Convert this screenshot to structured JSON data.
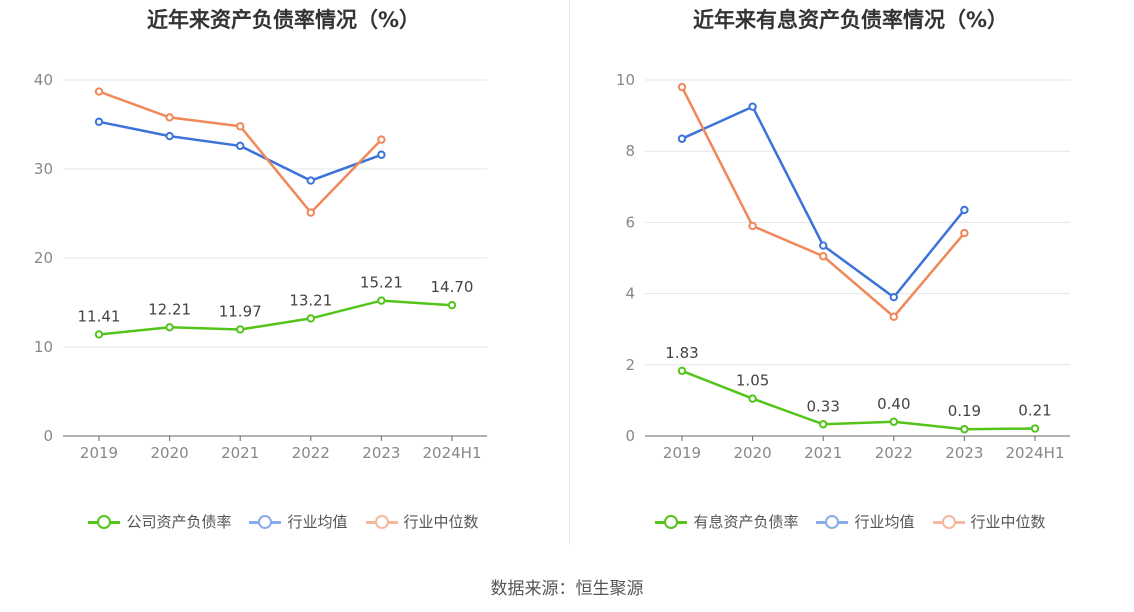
{
  "source_text": "数据来源：恒生聚源",
  "chart_data": [
    {
      "type": "line",
      "title": "近年来资产负债率情况（%）",
      "categories": [
        "2019",
        "2020",
        "2021",
        "2022",
        "2023",
        "2024H1"
      ],
      "ylim": [
        0,
        40
      ],
      "yticks": [
        0,
        10,
        20,
        30,
        40
      ],
      "grid": true,
      "legend_position": "bottom",
      "series": [
        {
          "name": "公司资产负债率",
          "color": "#52c41a",
          "values": [
            11.41,
            12.21,
            11.97,
            13.21,
            15.21,
            14.7
          ],
          "labels": [
            "11.41",
            "12.21",
            "11.97",
            "13.21",
            "15.21",
            "14.70"
          ]
        },
        {
          "name": "行业均值",
          "color": "#3b73d9",
          "values": [
            35.3,
            33.7,
            32.6,
            28.7,
            31.6,
            null
          ]
        },
        {
          "name": "行业中位数",
          "color": "#f0885a",
          "values": [
            38.7,
            35.8,
            34.8,
            25.1,
            33.3,
            null
          ]
        }
      ]
    },
    {
      "type": "line",
      "title": "近年来有息资产负债率情况（%）",
      "categories": [
        "2019",
        "2020",
        "2021",
        "2022",
        "2023",
        "2024H1"
      ],
      "ylim": [
        0,
        10
      ],
      "yticks": [
        0,
        2,
        4,
        6,
        8,
        10
      ],
      "grid": true,
      "legend_position": "bottom",
      "series": [
        {
          "name": "有息资产负债率",
          "color": "#52c41a",
          "values": [
            1.83,
            1.05,
            0.33,
            0.4,
            0.19,
            0.21
          ],
          "labels": [
            "1.83",
            "1.05",
            "0.33",
            "0.40",
            "0.19",
            "0.21"
          ]
        },
        {
          "name": "行业均值",
          "color": "#3b73d9",
          "values": [
            8.35,
            9.25,
            5.35,
            3.9,
            6.35,
            null
          ]
        },
        {
          "name": "行业中位数",
          "color": "#f0885a",
          "values": [
            9.8,
            5.9,
            5.05,
            3.35,
            5.7,
            null
          ]
        }
      ]
    }
  ]
}
